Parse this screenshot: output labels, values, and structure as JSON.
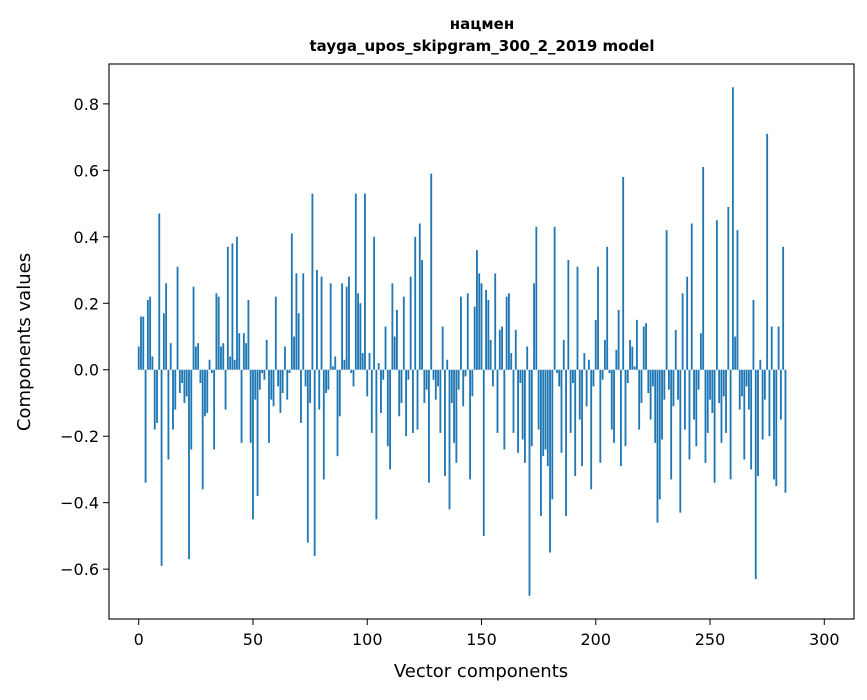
{
  "chart_data": {
    "type": "bar",
    "title": "нацмен",
    "subtitle": "tayga_upos_skipgram_300_2_2019 model",
    "xlabel": "Vector components",
    "ylabel": "Components values",
    "xlim": [
      -13,
      313
    ],
    "ylim": [
      -0.75,
      0.92
    ],
    "xticks": [
      0,
      50,
      100,
      150,
      200,
      250,
      300
    ],
    "yticks": [
      -0.6,
      -0.4,
      -0.2,
      0.0,
      0.2,
      0.4,
      0.6,
      0.8
    ],
    "xtick_labels": [
      "0",
      "50",
      "100",
      "150",
      "200",
      "250",
      "300"
    ],
    "ytick_labels": [
      "−0.6",
      "−0.4",
      "−0.2",
      "0.0",
      "0.2",
      "0.4",
      "0.6",
      "0.8"
    ],
    "grid": false,
    "legend": "none",
    "bar_color": "#1f77b4",
    "values": [
      0.07,
      0.16,
      0.16,
      -0.34,
      0.21,
      0.22,
      0.04,
      -0.18,
      -0.16,
      0.47,
      -0.59,
      0.17,
      0.26,
      -0.27,
      0.08,
      -0.18,
      -0.12,
      0.31,
      -0.07,
      -0.04,
      -0.1,
      -0.08,
      -0.57,
      -0.24,
      0.25,
      0.07,
      0.08,
      -0.04,
      -0.36,
      -0.14,
      -0.13,
      0.03,
      -0.01,
      -0.24,
      0.23,
      0.22,
      0.07,
      0.08,
      -0.12,
      0.37,
      0.04,
      0.38,
      0.03,
      0.4,
      0.11,
      -0.22,
      0.11,
      0.08,
      0.21,
      -0.22,
      -0.45,
      -0.09,
      -0.38,
      -0.06,
      -0.01,
      -0.03,
      0.09,
      -0.22,
      -0.09,
      -0.11,
      0.22,
      -0.05,
      -0.13,
      -0.07,
      0.07,
      -0.09,
      -0.01,
      0.41,
      0.1,
      0.29,
      0.17,
      -0.16,
      0.29,
      -0.05,
      -0.52,
      -0.1,
      0.53,
      -0.56,
      0.3,
      -0.12,
      0.28,
      -0.33,
      -0.07,
      -0.06,
      0.26,
      0.01,
      0.04,
      -0.26,
      -0.14,
      0.26,
      0.03,
      0.25,
      0.28,
      -0.01,
      -0.05,
      0.53,
      0.23,
      0.2,
      0.05,
      0.53,
      -0.08,
      0.05,
      -0.19,
      0.4,
      -0.45,
      0.02,
      -0.13,
      -0.03,
      0.13,
      -0.23,
      -0.3,
      0.26,
      0.1,
      0.18,
      -0.14,
      -0.1,
      0.22,
      -0.2,
      -0.03,
      0.28,
      -0.19,
      0.4,
      -0.18,
      0.44,
      0.33,
      -0.1,
      -0.06,
      -0.34,
      0.59,
      -0.03,
      -0.09,
      -0.05,
      -0.19,
      0.13,
      -0.32,
      0.03,
      -0.42,
      -0.1,
      -0.22,
      -0.28,
      -0.06,
      0.22,
      -0.11,
      -0.02,
      0.23,
      -0.33,
      -0.08,
      0.19,
      0.36,
      0.29,
      0.26,
      -0.5,
      0.24,
      0.21,
      0.09,
      -0.05,
      0.29,
      -0.19,
      0.12,
      0.13,
      -0.24,
      0.22,
      0.23,
      0.05,
      -0.19,
      0.12,
      -0.25,
      -0.04,
      -0.21,
      -0.28,
      0.07,
      -0.68,
      -0.23,
      0.26,
      0.43,
      -0.18,
      -0.44,
      -0.26,
      -0.24,
      -0.29,
      -0.55,
      -0.39,
      0.43,
      -0.01,
      -0.05,
      -0.25,
      0.09,
      -0.44,
      0.33,
      -0.19,
      -0.04,
      -0.32,
      0.31,
      -0.15,
      -0.29,
      0.05,
      -0.11,
      0.03,
      -0.36,
      -0.05,
      0.15,
      0.31,
      -0.28,
      -0.03,
      0.09,
      0.37,
      -0.01,
      -0.18,
      -0.22,
      0.06,
      0.18,
      -0.29,
      0.58,
      -0.23,
      -0.04,
      0.09,
      0.07,
      0.01,
      0.15,
      -0.18,
      -0.1,
      0.13,
      0.14,
      -0.07,
      -0.15,
      -0.05,
      -0.22,
      -0.46,
      -0.39,
      -0.21,
      -0.09,
      0.42,
      -0.06,
      -0.33,
      -0.11,
      0.12,
      -0.09,
      -0.43,
      0.23,
      -0.18,
      0.28,
      -0.27,
      0.44,
      -0.15,
      -0.23,
      -0.06,
      0.11,
      0.61,
      -0.28,
      -0.19,
      -0.09,
      -0.13,
      -0.34,
      0.45,
      -0.1,
      -0.22,
      -0.08,
      -0.19,
      0.49,
      -0.33,
      0.85,
      0.1,
      0.42,
      -0.12,
      -0.08,
      -0.27,
      -0.05,
      -0.12,
      -0.3,
      0.21,
      -0.63,
      -0.32,
      0.03,
      -0.21,
      -0.09,
      0.71,
      -0.2,
      0.13,
      -0.33,
      -0.35,
      0.13,
      -0.15,
      0.37,
      -0.37
    ]
  }
}
